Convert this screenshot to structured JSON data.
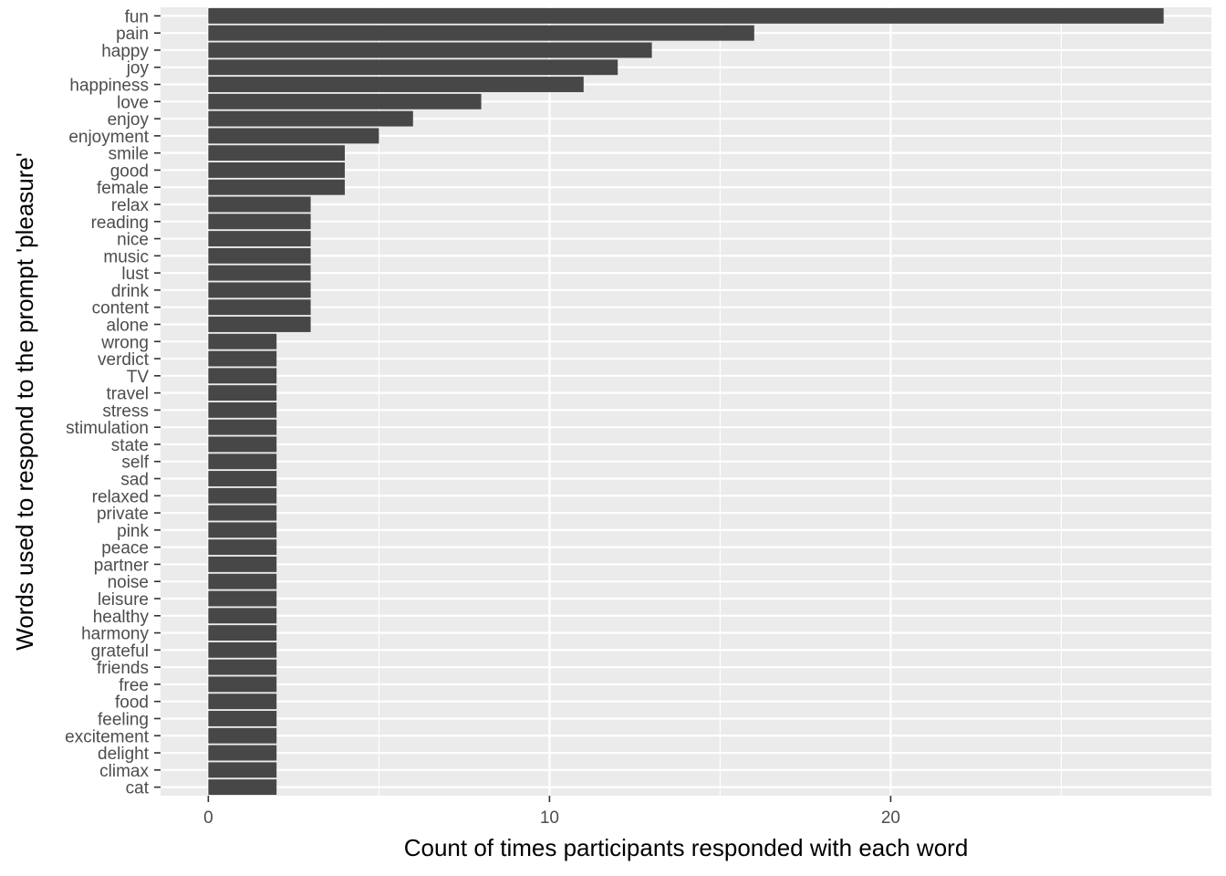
{
  "chart_data": {
    "type": "bar",
    "orientation": "horizontal",
    "xlabel": "Count of times participants responded with each word",
    "ylabel": "Words used to respond to the prompt 'pleasure'",
    "xlim": [
      -1.4,
      29.4
    ],
    "x_ticks": [
      "0",
      "10",
      "20"
    ],
    "grid": true,
    "colors": {
      "bar": "#474747",
      "panel": "#ebebeb",
      "grid": "#ffffff"
    },
    "categories": [
      "fun",
      "pain",
      "happy",
      "joy",
      "happiness",
      "love",
      "enjoy",
      "enjoyment",
      "smile",
      "good",
      "female",
      "relax",
      "reading",
      "nice",
      "music",
      "lust",
      "drink",
      "content",
      "alone",
      "wrong",
      "verdict",
      "TV",
      "travel",
      "stress",
      "stimulation",
      "state",
      "self",
      "sad",
      "relaxed",
      "private",
      "pink",
      "peace",
      "partner",
      "noise",
      "leisure",
      "healthy",
      "harmony",
      "grateful",
      "friends",
      "free",
      "food",
      "feeling",
      "excitement",
      "delight",
      "climax",
      "cat"
    ],
    "values": [
      28,
      16,
      13,
      12,
      11,
      8,
      6,
      5,
      4,
      4,
      4,
      3,
      3,
      3,
      3,
      3,
      3,
      3,
      3,
      2,
      2,
      2,
      2,
      2,
      2,
      2,
      2,
      2,
      2,
      2,
      2,
      2,
      2,
      2,
      2,
      2,
      2,
      2,
      2,
      2,
      2,
      2,
      2,
      2,
      2,
      2
    ]
  }
}
